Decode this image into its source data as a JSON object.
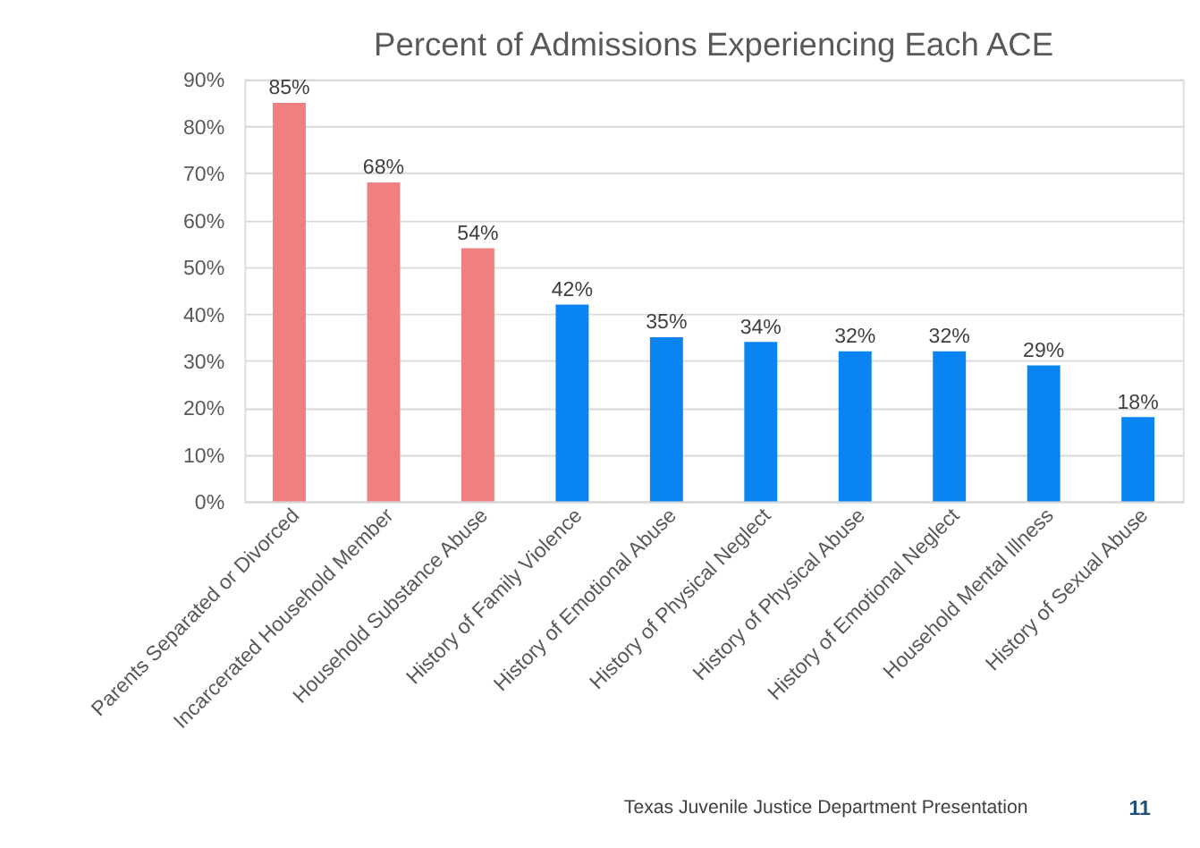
{
  "chart_data": {
    "type": "bar",
    "title": "Percent of Admissions Experiencing Each ACE",
    "categories": [
      "Parents Separated or Divorced",
      "Incarcerated Household Member",
      "Household Substance Abuse",
      "History of Family Violence",
      "History of Emotional Abuse",
      "History of Physical Neglect",
      "History of Physical Abuse",
      "History of Emotional Neglect",
      "Household Mental Illness",
      "History of Sexual Abuse"
    ],
    "values": [
      85,
      68,
      54,
      42,
      35,
      34,
      32,
      32,
      29,
      18
    ],
    "colors": [
      "#f08080",
      "#f08080",
      "#f08080",
      "#0a84f0",
      "#0a84f0",
      "#0a84f0",
      "#0a84f0",
      "#0a84f0",
      "#0a84f0",
      "#0a84f0"
    ],
    "value_labels": [
      "85%",
      "68%",
      "54%",
      "42%",
      "35%",
      "34%",
      "32%",
      "32%",
      "29%",
      "18%"
    ],
    "ylim": [
      0,
      90
    ],
    "yticks": [
      {
        "value": 0,
        "label": "0%"
      },
      {
        "value": 10,
        "label": "10%"
      },
      {
        "value": 20,
        "label": "20%"
      },
      {
        "value": 30,
        "label": "30%"
      },
      {
        "value": 40,
        "label": "40%"
      },
      {
        "value": 50,
        "label": "50%"
      },
      {
        "value": 60,
        "label": "60%"
      },
      {
        "value": 70,
        "label": "70%"
      },
      {
        "value": 80,
        "label": "80%"
      },
      {
        "value": 90,
        "label": "90%"
      }
    ],
    "grid": "y",
    "annotations": [
      "Texas Juvenile Justice Department Presentation",
      "11"
    ]
  }
}
